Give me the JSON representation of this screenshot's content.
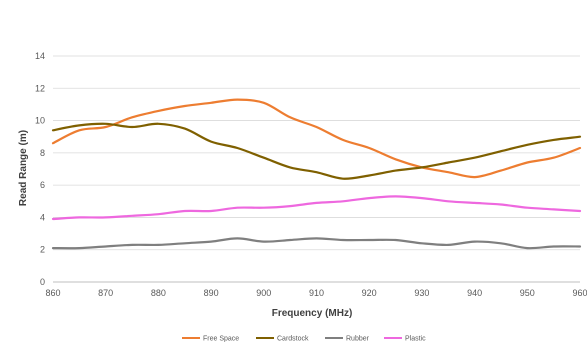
{
  "chart_data": {
    "type": "line",
    "xlabel": "Frequency (MHz)",
    "ylabel": "Read Range (m)",
    "xlim": [
      860,
      960
    ],
    "ylim": [
      0,
      14
    ],
    "xticks": [
      "860",
      "870",
      "880",
      "890",
      "900",
      "910",
      "920",
      "930",
      "940",
      "950",
      "960"
    ],
    "yticks": [
      "0",
      "2",
      "4",
      "6",
      "8",
      "10",
      "12",
      "14"
    ],
    "grid": "horizontal",
    "legend_position": "bottom",
    "x": [
      860,
      865,
      870,
      875,
      880,
      885,
      890,
      895,
      900,
      905,
      910,
      915,
      920,
      925,
      930,
      935,
      940,
      945,
      950,
      955,
      960
    ],
    "series": [
      {
        "name": "Free Space",
        "color": "#ED7D31",
        "values": [
          8.6,
          9.4,
          9.6,
          10.2,
          10.6,
          10.9,
          11.1,
          11.3,
          11.1,
          10.2,
          9.6,
          8.8,
          8.3,
          7.6,
          7.1,
          6.8,
          6.5,
          6.9,
          7.4,
          7.7,
          8.3
        ]
      },
      {
        "name": "Cardstock",
        "color": "#7F6000",
        "values": [
          9.4,
          9.7,
          9.8,
          9.6,
          9.8,
          9.5,
          8.7,
          8.3,
          7.7,
          7.1,
          6.8,
          6.4,
          6.6,
          6.9,
          7.1,
          7.4,
          7.7,
          8.1,
          8.5,
          8.8,
          9.0
        ]
      },
      {
        "name": "Rubber",
        "color": "#7F7F7F",
        "values": [
          2.1,
          2.1,
          2.2,
          2.3,
          2.3,
          2.4,
          2.5,
          2.7,
          2.5,
          2.6,
          2.7,
          2.6,
          2.6,
          2.6,
          2.4,
          2.3,
          2.5,
          2.4,
          2.1,
          2.2,
          2.2
        ]
      },
      {
        "name": "Plastic",
        "color": "#EE68DF",
        "values": [
          3.9,
          4.0,
          4.0,
          4.1,
          4.2,
          4.4,
          4.4,
          4.6,
          4.6,
          4.7,
          4.9,
          5.0,
          5.2,
          5.3,
          5.2,
          5.0,
          4.9,
          4.8,
          4.6,
          4.5,
          4.4
        ]
      }
    ]
  }
}
